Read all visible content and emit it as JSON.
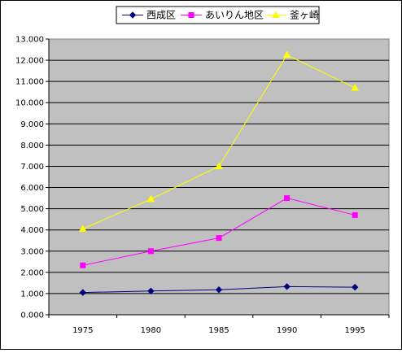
{
  "chart_data": {
    "type": "line",
    "title": "",
    "xlabel": "",
    "ylabel": "",
    "x": [
      "1975",
      "1980",
      "1985",
      "1990",
      "1995"
    ],
    "ylim": [
      0,
      13
    ],
    "yticks": [
      "0.000",
      "1.000",
      "2.000",
      "3.000",
      "4.000",
      "5.000",
      "6.000",
      "7.000",
      "8.000",
      "9.000",
      "10.000",
      "11.000",
      "12.000",
      "13.000"
    ],
    "grid": true,
    "legend_position": "top",
    "plot_background": "#c0c0c0",
    "series": [
      {
        "name": "西成区",
        "color": "#000080",
        "marker": "diamond",
        "values": [
          1.05,
          1.12,
          1.18,
          1.33,
          1.3
        ]
      },
      {
        "name": "あいりん地区",
        "color": "#ff00ff",
        "marker": "square",
        "values": [
          2.33,
          3.0,
          3.62,
          5.5,
          4.7
        ]
      },
      {
        "name": "釜ヶ崎",
        "color": "#ffff00",
        "marker": "triangle",
        "values": [
          4.05,
          5.45,
          7.0,
          12.25,
          10.7
        ]
      }
    ]
  }
}
